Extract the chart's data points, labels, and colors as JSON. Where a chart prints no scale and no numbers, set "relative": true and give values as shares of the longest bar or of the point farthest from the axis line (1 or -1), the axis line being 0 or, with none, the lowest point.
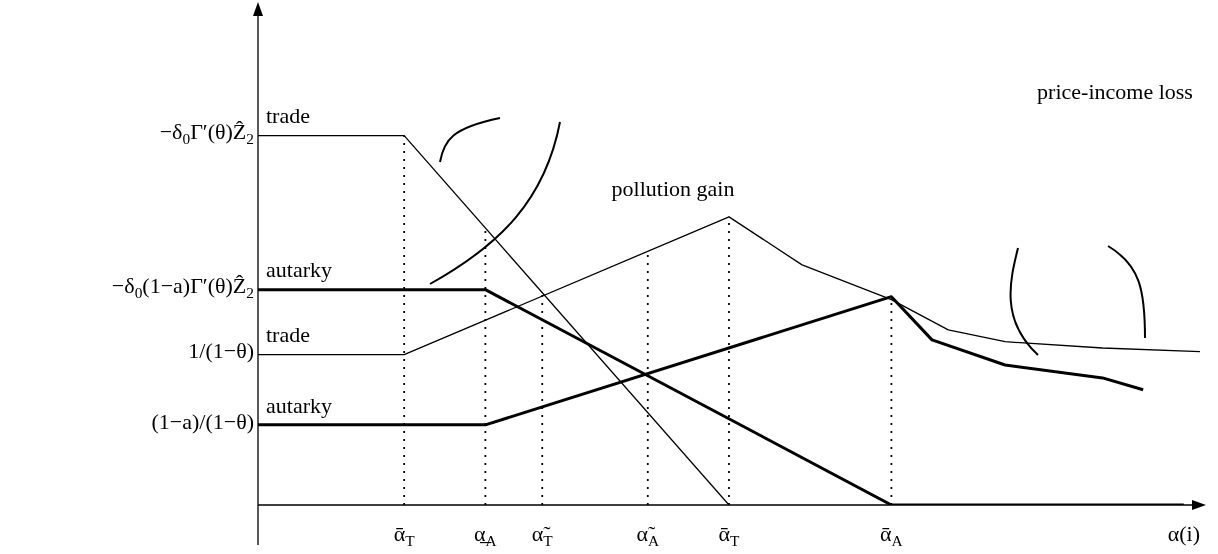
{
  "chart_data": {
    "type": "line",
    "relative": true,
    "xlabel": "α(i)",
    "categories": [
      null,
      null,
      null,
      null,
      null,
      null,
      null,
      null,
      null,
      null,
      null,
      null,
      null,
      null,
      null,
      null,
      null,
      null,
      "ᾱ$_{T}$",
      null,
      null,
      null,
      null,
      null,
      null,
      null,
      null,
      null,
      "α̲$_{A}$",
      null,
      null,
      null,
      null,
      null,
      null,
      "α̃$_{T}$",
      null,
      null,
      null,
      null,
      null,
      null,
      null,
      null,
      null,
      null,
      null,
      null,
      "α̃$_{A}$",
      null,
      null,
      null,
      null,
      null,
      null,
      null,
      null,
      null,
      "ᾱ$_{T}$",
      null,
      null,
      null,
      null,
      null,
      null,
      null,
      null,
      null,
      null,
      null,
      null,
      null,
      null,
      null,
      null,
      null,
      null,
      null,
      "ᾱ$_{A}$",
      null,
      null,
      null,
      null,
      null,
      null,
      null,
      null,
      null,
      null,
      null,
      null,
      null,
      null,
      null,
      null,
      null,
      null,
      null,
      null,
      null,
      null,
      null,
      null,
      null,
      null,
      null,
      null,
      null,
      null,
      null,
      null,
      null,
      null,
      null,
      null,
      null,
      null
    ],
    "series": [
      {
        "name": "trade",
        "color": "#000000",
        "values": [
          1,
          null,
          null,
          null,
          null,
          null,
          null,
          null,
          null,
          null,
          null,
          null,
          null,
          null,
          null,
          null,
          null,
          null,
          1,
          null,
          null,
          null,
          null,
          null,
          null,
          null,
          null,
          null,
          null,
          null,
          null,
          null,
          null,
          null,
          null,
          null,
          null,
          null,
          null,
          null,
          null,
          null,
          null,
          null,
          null,
          null,
          null,
          null,
          null,
          null,
          null,
          null,
          null,
          null,
          null,
          null,
          null,
          null,
          0,
          null,
          null,
          null,
          null,
          null,
          null,
          null,
          null,
          null,
          null,
          null,
          null,
          null,
          null,
          null,
          null,
          null,
          null,
          null,
          null,
          null,
          null,
          null,
          null,
          null,
          null,
          null,
          null,
          null,
          null,
          null,
          null,
          null,
          null,
          null,
          null,
          null,
          null,
          null,
          null,
          null,
          null,
          null,
          null,
          null,
          null,
          null,
          null,
          null,
          null,
          null,
          null,
          null,
          null,
          null,
          null,
          null,
          null
        ]
      },
      {
        "name": "autarky",
        "color": "#000000",
        "values": [
          0.583,
          null,
          null,
          null,
          null,
          null,
          null,
          null,
          null,
          null,
          null,
          null,
          null,
          null,
          null,
          null,
          null,
          null,
          null,
          null,
          null,
          null,
          null,
          null,
          null,
          null,
          null,
          null,
          0.583,
          null,
          null,
          null,
          null,
          null,
          null,
          null,
          null,
          null,
          null,
          null,
          null,
          null,
          null,
          null,
          null,
          null,
          null,
          null,
          null,
          null,
          null,
          null,
          null,
          null,
          null,
          null,
          null,
          null,
          null,
          null,
          null,
          null,
          null,
          null,
          null,
          null,
          null,
          null,
          null,
          null,
          null,
          null,
          null,
          null,
          null,
          null,
          null,
          null,
          0,
          null,
          null,
          null,
          null,
          null,
          null,
          null,
          null,
          null,
          null,
          null,
          null,
          null,
          null,
          null,
          null,
          null,
          null,
          null,
          null,
          null,
          null,
          null,
          null,
          null,
          null,
          null,
          null,
          null,
          null,
          null,
          null,
          null,
          null,
          null,
          0,
          null,
          null
        ]
      },
      {
        "name": "trade",
        "color": "#000000",
        "values": [
          0.407,
          null,
          null,
          null,
          null,
          null,
          null,
          null,
          null,
          null,
          null,
          null,
          null,
          null,
          null,
          null,
          null,
          null,
          0.407,
          null,
          null,
          null,
          null,
          null,
          null,
          null,
          null,
          null,
          null,
          null,
          null,
          null,
          null,
          null,
          null,
          null,
          null,
          null,
          null,
          null,
          null,
          null,
          null,
          null,
          null,
          null,
          null,
          null,
          null,
          null,
          null,
          null,
          null,
          null,
          null,
          null,
          null,
          null,
          0.78,
          null,
          null,
          null,
          null,
          null,
          null,
          null,
          null,
          0.65,
          null,
          null,
          null,
          null,
          null,
          null,
          null,
          null,
          null,
          null,
          0.556,
          null,
          null,
          null,
          null,
          null,
          null,
          0.474,
          null,
          null,
          null,
          null,
          null,
          null,
          0.442,
          null,
          null,
          null,
          null,
          null,
          null,
          null,
          null,
          null,
          null,
          null,
          0.425,
          null,
          null,
          null,
          null,
          null,
          null,
          null,
          null,
          null,
          null,
          null,
          0.415
        ]
      },
      {
        "name": "autarky",
        "color": "#000000",
        "values": [
          0.217,
          null,
          null,
          null,
          null,
          null,
          null,
          null,
          null,
          null,
          null,
          null,
          null,
          null,
          null,
          null,
          null,
          null,
          null,
          null,
          null,
          null,
          null,
          null,
          null,
          null,
          null,
          null,
          0.217,
          null,
          null,
          null,
          null,
          null,
          null,
          null,
          null,
          null,
          null,
          null,
          null,
          null,
          null,
          null,
          null,
          null,
          null,
          null,
          null,
          null,
          null,
          null,
          null,
          null,
          null,
          null,
          null,
          null,
          null,
          null,
          null,
          null,
          null,
          null,
          null,
          null,
          null,
          null,
          null,
          null,
          null,
          null,
          null,
          null,
          null,
          null,
          null,
          null,
          0.564,
          null,
          null,
          null,
          null,
          0.447,
          null,
          null,
          null,
          null,
          null,
          null,
          null,
          null,
          0.379,
          null,
          null,
          null,
          null,
          null,
          null,
          null,
          null,
          null,
          null,
          null,
          0.344,
          null,
          null,
          null,
          null,
          0.312,
          null,
          null,
          null,
          null,
          null,
          null,
          null
        ]
      }
    ],
    "annotations": [
      "−δ$_{0}$Γ′(θ)Ẑ$_{2}$",
      "−δ$_{0}$(1−a)Γ′(θ)Ẑ$_{2}$",
      "1/(1−θ)",
      "(1−a)/(1−θ)",
      "pollution gain",
      "price-income loss"
    ],
    "legend": false,
    "grid": "x"
  }
}
